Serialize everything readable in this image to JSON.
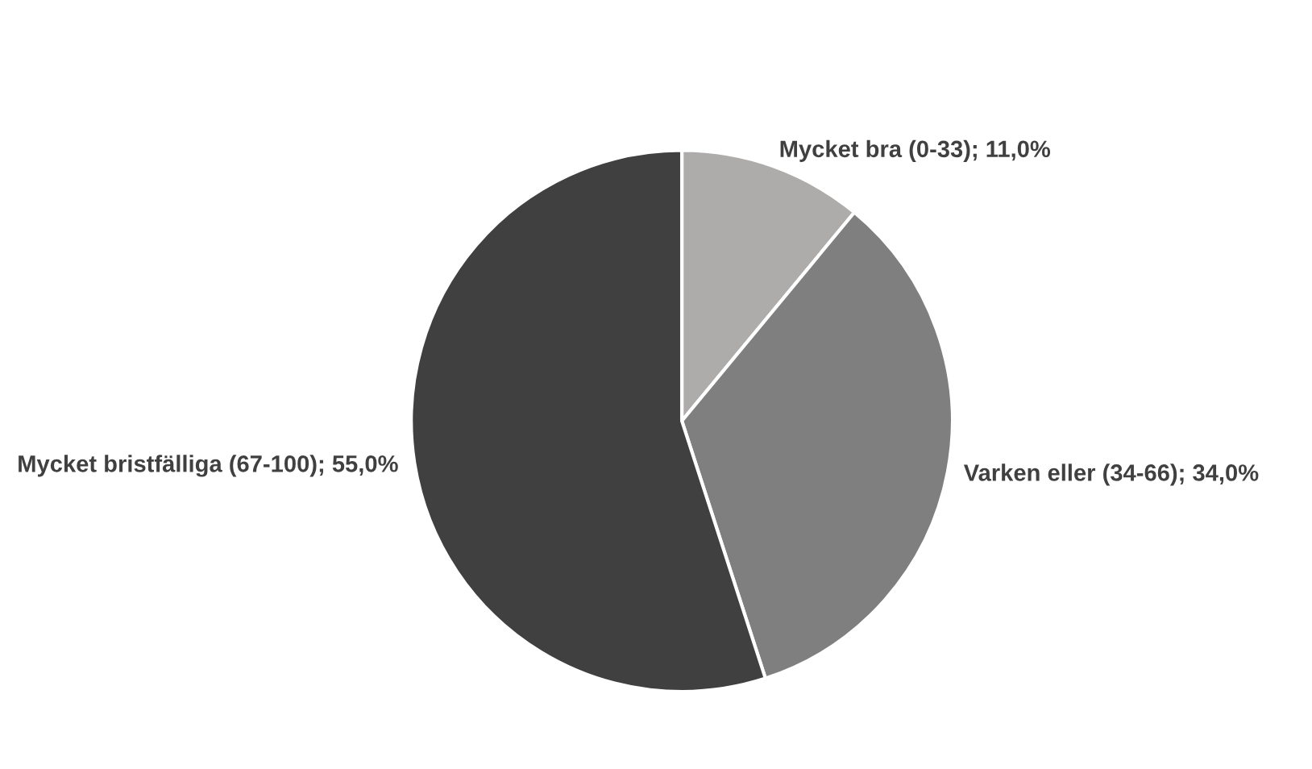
{
  "chart_data": {
    "type": "pie",
    "categories": [
      "Mycket bra (0-33)",
      "Varken eller (34-66)",
      "Mycket bristfälliga (67-100)"
    ],
    "values": [
      11,
      34,
      55
    ],
    "value_labels": [
      "11,0%",
      "34,0%",
      "55,0%"
    ],
    "colors": [
      "#aeabab",
      "#7f7f7f",
      "#404040"
    ],
    "legend": false
  }
}
